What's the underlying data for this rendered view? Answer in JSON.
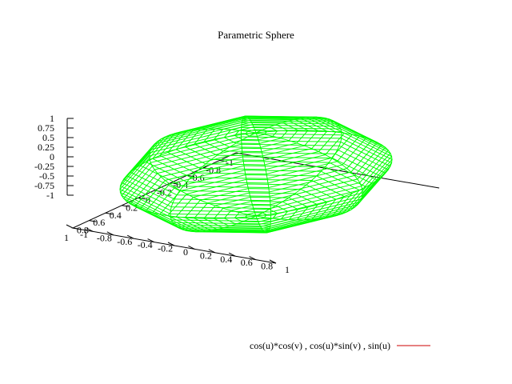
{
  "chart_data": {
    "type": "surface3d",
    "title": "Parametric Sphere",
    "x_axis": {
      "ticks": [
        "-1",
        "-0.8",
        "-0.6",
        "-0.4",
        "-0.2",
        "0",
        "0.2",
        "0.4",
        "0.6",
        "0.8",
        "1"
      ],
      "range": [
        -1,
        1
      ]
    },
    "y_axis": {
      "ticks": [
        "-1",
        "-0.8",
        "-0.6",
        "-0.4",
        "-0.2",
        "0",
        "0.2",
        "0.4",
        "0.6",
        "0.8",
        "1"
      ],
      "range": [
        -1,
        1
      ]
    },
    "z_axis": {
      "ticks": [
        "1",
        "0.75",
        "0.5",
        "0.25",
        "0",
        "-0.25",
        "-0.5",
        "-0.75",
        "-1"
      ],
      "range": [
        -1,
        1
      ]
    },
    "series": [
      {
        "name": "cos(u)*cos(v) , cos(u)*sin(v) , sin(u)",
        "function": {
          "x": "cos(u)*cos(v)",
          "y": "cos(u)*sin(v)",
          "z": "sin(u)"
        },
        "surface_color": "#00ff00",
        "legend_color": "#cc0000",
        "u_samples": 40,
        "v_samples": 8
      }
    ]
  }
}
